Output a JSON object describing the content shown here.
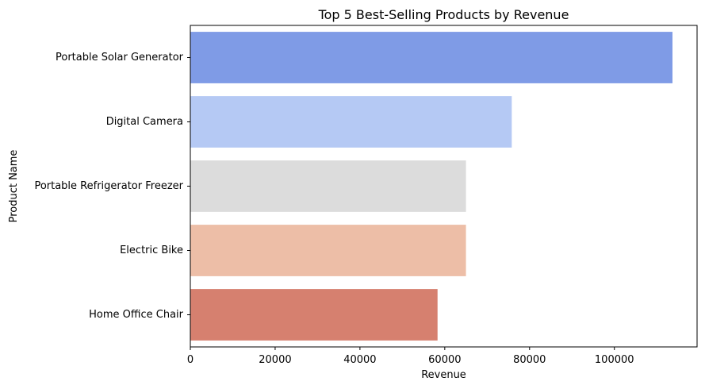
{
  "chart_data": {
    "type": "bar",
    "orientation": "horizontal",
    "title": "Top 5 Best-Selling Products by Revenue",
    "xlabel": "Revenue",
    "ylabel": "Product Name",
    "categories": [
      "Portable Solar Generator",
      "Digital Camera",
      "Portable Refrigerator Freezer",
      "Electric Bike",
      "Home Office Chair"
    ],
    "values": [
      113700,
      75800,
      65000,
      65000,
      58300
    ],
    "colors": [
      "#7f9be6",
      "#b5c9f4",
      "#dcdcdc",
      "#edbea7",
      "#d6806f"
    ],
    "xlim": [
      0,
      119500
    ],
    "xticks": [
      0,
      20000,
      40000,
      60000,
      80000,
      100000
    ],
    "xtick_labels": [
      "0",
      "20000",
      "40000",
      "60000",
      "80000",
      "100000"
    ],
    "grid": false,
    "legend": "none"
  }
}
